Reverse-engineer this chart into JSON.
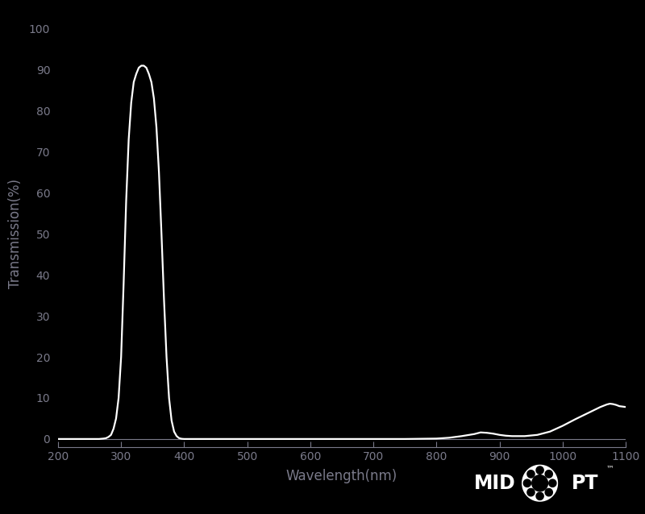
{
  "background_color": "#000000",
  "plot_bg_color": "#000000",
  "line_color": "#ffffff",
  "tick_color": "#7a7a8a",
  "label_color": "#7a7a8a",
  "xlabel": "Wavelength(nm)",
  "ylabel": "Transmission(%)",
  "xlim": [
    200,
    1100
  ],
  "ylim": [
    -2,
    102
  ],
  "xticks": [
    200,
    300,
    400,
    500,
    600,
    700,
    800,
    900,
    1000,
    1100
  ],
  "yticks": [
    0,
    10,
    20,
    30,
    40,
    50,
    60,
    70,
    80,
    90,
    100
  ],
  "line_width": 1.6,
  "wavelengths": [
    200,
    250,
    265,
    272,
    276,
    280,
    284,
    288,
    292,
    296,
    300,
    304,
    308,
    312,
    316,
    320,
    324,
    328,
    332,
    336,
    340,
    344,
    348,
    352,
    356,
    360,
    364,
    368,
    372,
    376,
    380,
    384,
    388,
    392,
    396,
    400,
    410,
    420,
    430,
    450,
    500,
    550,
    600,
    650,
    700,
    750,
    800,
    820,
    840,
    860,
    870,
    880,
    890,
    900,
    910,
    920,
    940,
    960,
    980,
    1000,
    1020,
    1040,
    1060,
    1070,
    1075,
    1080,
    1085,
    1090,
    1100
  ],
  "transmission": [
    0,
    0,
    0,
    0.1,
    0.2,
    0.5,
    1.0,
    2.5,
    5,
    10,
    20,
    38,
    58,
    73,
    82,
    87,
    89,
    90.5,
    91,
    91,
    90.5,
    89,
    87,
    83,
    76,
    65,
    50,
    34,
    20,
    10,
    4.5,
    1.8,
    0.7,
    0.2,
    0.05,
    0,
    0,
    0,
    0,
    0,
    0,
    0,
    0,
    0,
    0,
    0,
    0.1,
    0.3,
    0.7,
    1.2,
    1.6,
    1.5,
    1.3,
    1.0,
    0.8,
    0.7,
    0.7,
    1.0,
    1.8,
    3.2,
    4.8,
    6.3,
    7.8,
    8.4,
    8.6,
    8.5,
    8.3,
    8.0,
    7.8
  ],
  "font_size_labels": 12,
  "font_size_ticks": 10,
  "logo_mid": "MID",
  "logo_pt": "PT",
  "logo_tm": "™"
}
